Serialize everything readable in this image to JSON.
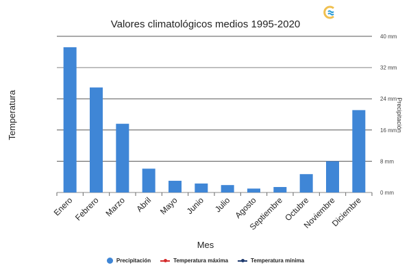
{
  "logo": {
    "icon": "weather-logo-icon"
  },
  "colors": {
    "precipitation": "#3f86d6",
    "temp_max": "#d42a2a",
    "temp_min": "#1f3a6e",
    "grid": "#555555",
    "grid_light": "#aaaaaa"
  },
  "chart_data": {
    "type": "bar",
    "title": "Valores climatológicos medios 1995-2020",
    "xlabel": "Mes",
    "ylabel_left": "Temperatura",
    "ylabel_right": "Precipitación",
    "categories": [
      "Enero",
      "Febrero",
      "Marzo",
      "Abril",
      "Mayo",
      "Junio",
      "Julio",
      "Agosto",
      "Septiembre",
      "Octubre",
      "Noviembre",
      "Diciembre"
    ],
    "series": [
      {
        "name": "Precipitación",
        "type": "bar",
        "unit": "mm",
        "values": [
          37.2,
          26.9,
          17.6,
          6.1,
          3.0,
          2.3,
          1.9,
          1.0,
          1.4,
          4.7,
          8.0,
          21.1
        ]
      }
    ],
    "y_right": {
      "ylim": [
        0,
        40
      ],
      "ticks": [
        0,
        8,
        16,
        24,
        32,
        40
      ],
      "tick_labels": [
        "0 mm",
        "8 mm",
        "16 mm",
        "24 mm",
        "32 mm",
        "40 mm"
      ]
    },
    "grid": true,
    "legend": {
      "placement": "bottom",
      "entries": [
        {
          "label": "Precipitación",
          "marker": "circle"
        },
        {
          "label": "Temperatura máxima",
          "marker": "line"
        },
        {
          "label": "Temperatura mínima",
          "marker": "line"
        }
      ]
    }
  }
}
